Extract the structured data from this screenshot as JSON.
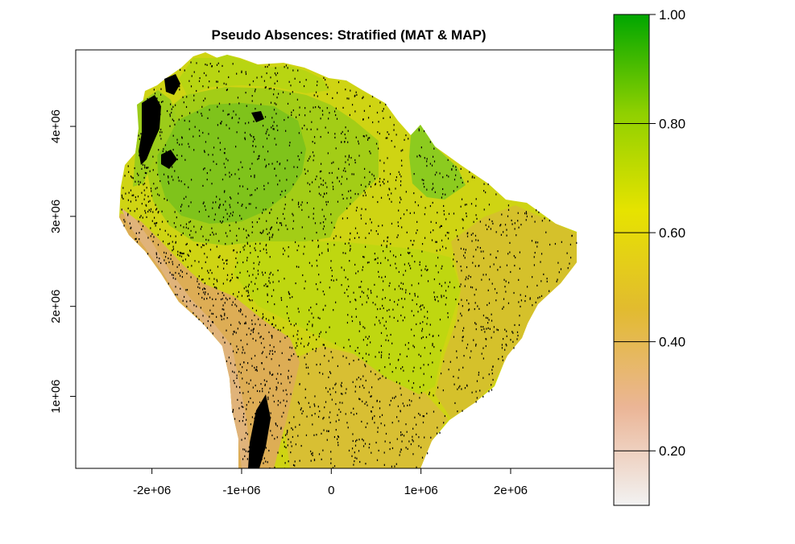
{
  "title": "Pseudo Absences: Stratified (MAT & MAP)",
  "x_ticks": [
    {
      "label": "-2e+06",
      "value": -2000000
    },
    {
      "label": "-1e+06",
      "value": -1000000
    },
    {
      "label": "0",
      "value": 0
    },
    {
      "label": "1e+06",
      "value": 1000000
    },
    {
      "label": "2e+06",
      "value": 2000000
    }
  ],
  "y_ticks": [
    {
      "label": "1e+06",
      "value": 1000000
    },
    {
      "label": "2e+06",
      "value": 2000000
    },
    {
      "label": "3e+06",
      "value": 3000000
    },
    {
      "label": "4e+06",
      "value": 4000000
    }
  ],
  "x_range": [
    -2850000,
    3150000
  ],
  "y_range": [
    200000,
    4850000
  ],
  "legend": {
    "ticks": [
      {
        "label": "0.20",
        "value": 0.2
      },
      {
        "label": "0.40",
        "value": 0.4
      },
      {
        "label": "0.60",
        "value": 0.6
      },
      {
        "label": "0.80",
        "value": 0.8
      },
      {
        "label": "1.00",
        "value": 1.0
      }
    ],
    "range": [
      0.1,
      1.0
    ],
    "colors": [
      "#f2f2f2",
      "#ebb596",
      "#e2bb2f",
      "#e6e300",
      "#8fd000",
      "#00a600"
    ]
  },
  "colors": {
    "amazon_core": "#7dc11a",
    "amazon_mid": "#a6d015",
    "central_plain": "#bdd710",
    "savanna": "#d7cc2a",
    "andes": "#e0ad55",
    "coast": "#d8b24a",
    "guiana": "#8ccb1e",
    "points": "#000000"
  }
}
